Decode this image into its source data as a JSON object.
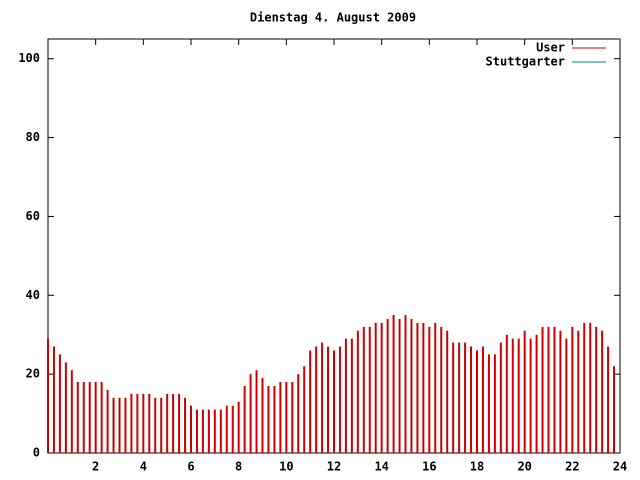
{
  "chart_data": {
    "type": "impulse",
    "title": "Dienstag 4. August 2009",
    "x": [
      0,
      0.25,
      0.5,
      0.75,
      1,
      1.25,
      1.5,
      1.75,
      2,
      2.25,
      2.5,
      2.75,
      3,
      3.25,
      3.5,
      3.75,
      4,
      4.25,
      4.5,
      4.75,
      5,
      5.25,
      5.5,
      5.75,
      6,
      6.25,
      6.5,
      6.75,
      7,
      7.25,
      7.5,
      7.75,
      8,
      8.25,
      8.5,
      8.75,
      9,
      9.25,
      9.5,
      9.75,
      10,
      10.25,
      10.5,
      10.75,
      11,
      11.25,
      11.5,
      11.75,
      12,
      12.25,
      12.5,
      12.75,
      13,
      13.25,
      13.5,
      13.75,
      14,
      14.25,
      14.5,
      14.75,
      15,
      15.25,
      15.5,
      15.75,
      16,
      16.25,
      16.5,
      16.75,
      17,
      17.25,
      17.5,
      17.75,
      18,
      18.25,
      18.5,
      18.75,
      19,
      19.25,
      19.5,
      19.75,
      20,
      20.25,
      20.5,
      20.75,
      21,
      21.25,
      21.5,
      21.75,
      22,
      22.25,
      22.5,
      22.75,
      23,
      23.25,
      23.5,
      23.75
    ],
    "series": [
      {
        "name": "User",
        "color": "#cc0000",
        "values": [
          29,
          27,
          25,
          23,
          21,
          18,
          18,
          18,
          18,
          18,
          16,
          14,
          14,
          14,
          15,
          15,
          15,
          15,
          14,
          14,
          15,
          15,
          15,
          14,
          12,
          11,
          11,
          11,
          11,
          11,
          12,
          12,
          13,
          17,
          20,
          21,
          19,
          17,
          17,
          18,
          18,
          18,
          20,
          22,
          26,
          27,
          28,
          27,
          26,
          27,
          29,
          29,
          31,
          32,
          32,
          33,
          33,
          34,
          35,
          34,
          35,
          34,
          33,
          33,
          32,
          33,
          32,
          31,
          28,
          28,
          28,
          27,
          26,
          27,
          25,
          25,
          28,
          30,
          29,
          29,
          31,
          29,
          30,
          32,
          32,
          32,
          31,
          29,
          32,
          31,
          33,
          33,
          32,
          31,
          27,
          22
        ]
      },
      {
        "name": "Stuttgarter",
        "color": "#008080",
        "values": [
          null,
          null,
          null,
          null,
          null,
          null,
          null,
          null,
          null,
          null,
          null,
          null,
          null,
          null,
          null,
          null,
          null,
          null,
          null,
          null,
          null,
          null,
          null,
          null,
          null,
          null,
          null,
          null,
          null,
          null,
          null,
          null,
          null,
          null,
          null,
          null,
          null,
          null,
          null,
          null,
          null,
          null,
          null,
          null,
          null,
          null,
          null,
          null,
          null,
          null,
          null,
          null,
          null,
          null,
          null,
          null,
          null,
          null,
          null,
          null,
          null,
          null,
          null,
          null,
          null,
          null,
          null,
          null,
          null,
          null,
          null,
          null,
          null,
          null,
          null,
          null,
          null,
          null,
          null,
          null,
          null,
          null,
          null,
          null,
          null,
          null,
          null,
          null,
          null,
          null,
          null,
          null,
          null,
          null,
          null,
          null
        ]
      }
    ],
    "xlim": [
      0,
      24
    ],
    "xticks": [
      2,
      4,
      6,
      8,
      10,
      12,
      14,
      16,
      18,
      20,
      22,
      24
    ],
    "ylim": [
      0,
      105
    ],
    "yticks": [
      0,
      20,
      40,
      60,
      80,
      100
    ],
    "legend": "upper right",
    "grid": false
  }
}
